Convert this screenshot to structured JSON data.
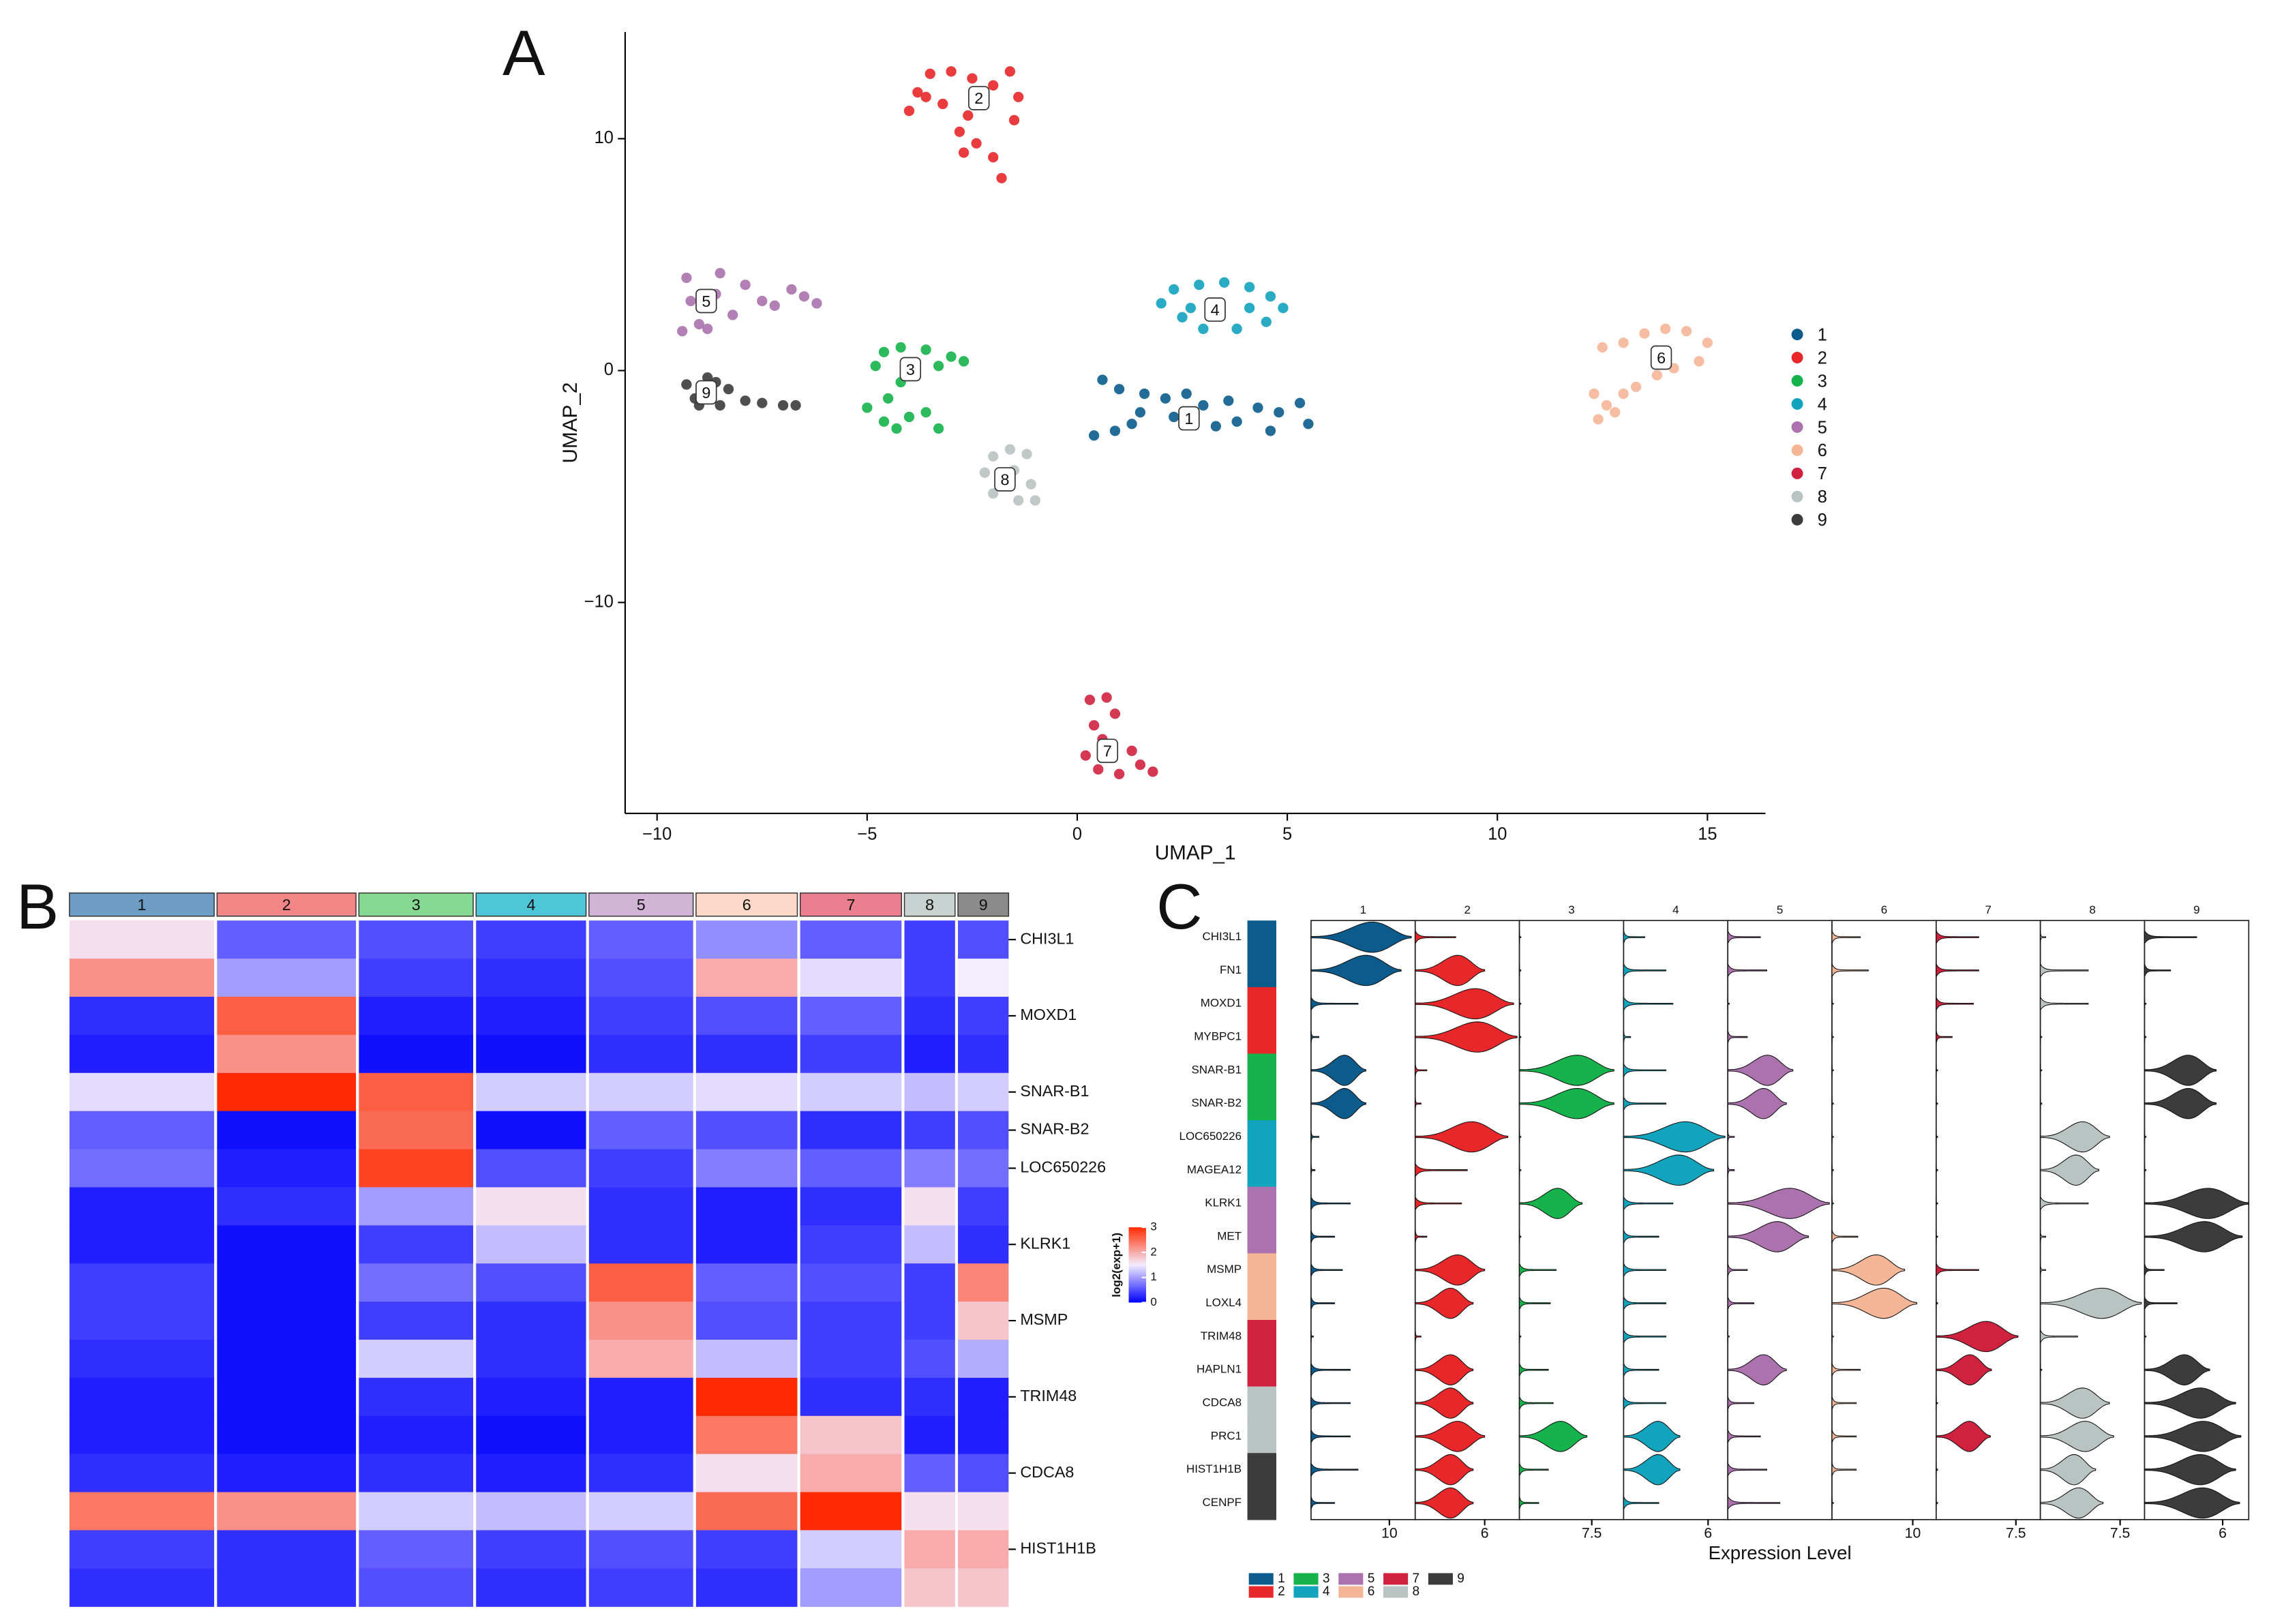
{
  "chart_data": [
    {
      "type": "scatter",
      "panel": "A",
      "xlabel": "UMAP_1",
      "ylabel": "UMAP_2",
      "xlim": [
        -10.76,
        16.38
      ],
      "ylim": [
        -19.1,
        14.6
      ],
      "xticks": [
        {
          "value": -10,
          "label": "−10"
        },
        {
          "value": -5,
          "label": "−5"
        },
        0,
        5,
        10,
        15
      ],
      "yticks": [
        {
          "value": -10,
          "label": "−10"
        },
        0,
        10
      ],
      "series": [
        {
          "name": "1",
          "color": "#0b5c8c",
          "label_x": 2.66,
          "label_y": -2.06,
          "x": [
            0.4,
            0.9,
            1.3,
            1.5,
            0.6,
            1.0,
            1.6,
            2.1,
            2.6,
            3.0,
            3.3,
            3.8,
            4.3,
            4.8,
            5.3,
            5.5,
            4.6,
            3.6,
            2.3
          ],
          "y": [
            -2.8,
            -2.6,
            -2.3,
            -1.8,
            -0.4,
            -0.8,
            -1.0,
            -1.2,
            -1.0,
            -1.5,
            -2.4,
            -2.2,
            -1.6,
            -1.8,
            -1.4,
            -2.3,
            -2.6,
            -1.3,
            -2.0
          ]
        },
        {
          "name": "2",
          "color": "#e8272a",
          "label_x": -2.34,
          "label_y": 11.75,
          "x": [
            -4.0,
            -3.8,
            -3.5,
            -3.0,
            -2.5,
            -2.0,
            -1.4,
            -1.6,
            -3.2,
            -2.6,
            -2.8,
            -2.4,
            -2.7,
            -2.0,
            -1.8,
            -1.5,
            -3.6
          ],
          "y": [
            11.2,
            12.0,
            12.8,
            12.9,
            12.6,
            12.3,
            11.8,
            12.9,
            11.5,
            11.0,
            10.3,
            9.8,
            9.4,
            9.2,
            8.3,
            10.8,
            11.8
          ]
        },
        {
          "name": "3",
          "color": "#16b24b",
          "label_x": -3.97,
          "label_y": 0.06,
          "x": [
            -4.8,
            -4.6,
            -4.2,
            -3.6,
            -3.0,
            -2.7,
            -3.3,
            -4.2,
            -4.5,
            -5.0,
            -4.6,
            -4.0,
            -3.6,
            -3.3,
            -4.3
          ],
          "y": [
            0.2,
            0.8,
            1.0,
            0.9,
            0.6,
            0.4,
            0.2,
            -0.5,
            -1.2,
            -1.6,
            -2.2,
            -2.0,
            -1.8,
            -2.5,
            -2.5
          ]
        },
        {
          "name": "4",
          "color": "#12a3bd",
          "label_x": 3.28,
          "label_y": 2.63,
          "x": [
            2.0,
            2.3,
            2.9,
            3.5,
            4.1,
            4.6,
            4.9,
            4.5,
            3.8,
            3.0,
            2.5,
            3.4,
            2.7,
            4.1
          ],
          "y": [
            2.9,
            3.5,
            3.7,
            3.8,
            3.6,
            3.2,
            2.7,
            2.1,
            1.8,
            1.8,
            2.3,
            2.8,
            2.7,
            2.7
          ]
        },
        {
          "name": "5",
          "color": "#ab72ae",
          "label_x": -8.83,
          "label_y": 3.0,
          "x": [
            -9.3,
            -9.2,
            -9.0,
            -8.5,
            -8.6,
            -8.2,
            -7.9,
            -7.5,
            -7.2,
            -6.8,
            -6.5,
            -6.2,
            -9.4,
            -8.8
          ],
          "y": [
            4.0,
            3.0,
            2.0,
            4.2,
            3.3,
            2.4,
            3.7,
            3.0,
            2.8,
            3.5,
            3.2,
            2.9,
            1.7,
            1.8
          ]
        },
        {
          "name": "6",
          "color": "#f5b698",
          "label_x": 13.9,
          "label_y": 0.56,
          "x": [
            12.5,
            13.0,
            13.5,
            14.0,
            14.5,
            15.0,
            14.8,
            14.2,
            13.8,
            13.3,
            13.0,
            12.6,
            12.4,
            12.8,
            12.3
          ],
          "y": [
            1.0,
            1.2,
            1.6,
            1.8,
            1.7,
            1.2,
            0.4,
            0.1,
            -0.2,
            -0.7,
            -1.0,
            -1.5,
            -2.1,
            -1.8,
            -1.0
          ]
        },
        {
          "name": "7",
          "color": "#d0223f",
          "label_x": 0.72,
          "label_y": -16.4,
          "x": [
            0.3,
            0.7,
            0.9,
            0.4,
            0.6,
            0.2,
            0.5,
            1.0,
            1.5,
            1.8,
            1.3,
            0.8
          ],
          "y": [
            -14.2,
            -14.1,
            -14.8,
            -15.3,
            -15.9,
            -16.6,
            -17.2,
            -17.4,
            -17.0,
            -17.3,
            -16.4,
            -16.1
          ]
        },
        {
          "name": "8",
          "color": "#b9c3c1",
          "label_x": -1.72,
          "label_y": -4.69,
          "x": [
            -2.0,
            -1.6,
            -1.2,
            -2.2,
            -1.8,
            -2.0,
            -1.4,
            -1.0,
            -1.1,
            -1.5
          ],
          "y": [
            -3.7,
            -3.4,
            -3.6,
            -4.4,
            -4.9,
            -5.3,
            -5.6,
            -5.6,
            -4.9,
            -4.3
          ]
        },
        {
          "name": "9",
          "color": "#3c3c3c",
          "label_x": -8.83,
          "label_y": -0.94,
          "x": [
            -9.3,
            -9.1,
            -8.8,
            -8.5,
            -8.3,
            -7.9,
            -7.5,
            -7.0,
            -6.7,
            -9.0,
            -8.6
          ],
          "y": [
            -0.6,
            -1.2,
            -0.3,
            -1.5,
            -0.8,
            -1.3,
            -1.4,
            -1.5,
            -1.5,
            -1.5,
            -0.5
          ]
        }
      ]
    },
    {
      "type": "heatmap",
      "panel": "B",
      "categories": [
        "1",
        "2",
        "3",
        "4",
        "5",
        "6",
        "7",
        "8",
        "9"
      ],
      "cells": [
        200,
        192,
        158,
        152,
        144,
        140,
        140,
        70,
        70
      ],
      "header_colors": [
        "#6d9dc5",
        "#f28585",
        "#86d992",
        "#4fc6d8",
        "#d2b5d6",
        "#fcd9c8",
        "#e97f8f",
        "#c8d3d1",
        "#8b8b8b"
      ],
      "rows": [
        "CHI3L1",
        null,
        "MOXD1",
        null,
        "SNAR-B1",
        "SNAR-B2",
        "LOC650226",
        null,
        "KLRK1",
        null,
        "MSMP",
        null,
        "TRIM48",
        null,
        "CDCA8",
        null,
        "HIST1H1B",
        null
      ],
      "values": [
        [
          1.6,
          0.6,
          0.5,
          0.4,
          0.6,
          0.9,
          0.6,
          0.4,
          0.5
        ],
        [
          2.2,
          1.0,
          0.4,
          0.3,
          0.5,
          2.0,
          1.4,
          0.4,
          1.5
        ],
        [
          0.3,
          2.6,
          0.2,
          0.2,
          0.4,
          0.5,
          0.6,
          0.3,
          0.4
        ],
        [
          0.2,
          2.2,
          0.1,
          0.1,
          0.3,
          0.3,
          0.4,
          0.2,
          0.3
        ],
        [
          1.4,
          3.0,
          2.6,
          1.3,
          1.3,
          1.4,
          1.3,
          1.2,
          1.3
        ],
        [
          0.6,
          0.1,
          2.5,
          0.1,
          0.6,
          0.5,
          0.3,
          0.4,
          0.5
        ],
        [
          0.7,
          0.2,
          2.8,
          0.5,
          0.4,
          0.8,
          0.6,
          0.8,
          0.7
        ],
        [
          0.2,
          0.3,
          1.0,
          1.6,
          0.3,
          0.2,
          0.3,
          1.6,
          0.4
        ],
        [
          0.2,
          0.1,
          0.4,
          1.2,
          0.3,
          0.2,
          0.4,
          1.2,
          0.3
        ],
        [
          0.4,
          0.1,
          0.7,
          0.5,
          2.6,
          0.6,
          0.5,
          0.4,
          2.3
        ],
        [
          0.4,
          0.1,
          0.4,
          0.3,
          2.2,
          0.5,
          0.4,
          0.4,
          1.8
        ],
        [
          0.3,
          0.1,
          1.3,
          0.3,
          2.0,
          1.2,
          0.4,
          0.5,
          1.1
        ],
        [
          0.2,
          0.1,
          0.3,
          0.2,
          0.2,
          3.0,
          0.3,
          0.3,
          0.2
        ],
        [
          0.2,
          0.1,
          0.2,
          0.1,
          0.2,
          2.4,
          1.8,
          0.2,
          0.2
        ],
        [
          0.3,
          0.2,
          0.3,
          0.2,
          0.3,
          1.6,
          2.0,
          0.6,
          0.5
        ],
        [
          2.4,
          2.2,
          1.3,
          1.2,
          1.3,
          2.5,
          3.0,
          1.6,
          1.6
        ],
        [
          0.4,
          0.3,
          0.6,
          0.4,
          0.5,
          0.4,
          1.3,
          2.0,
          2.0
        ],
        [
          0.3,
          0.3,
          0.5,
          0.3,
          0.4,
          0.3,
          1.0,
          1.8,
          1.8
        ]
      ],
      "colorbar": {
        "title": "log2(exp+1)",
        "lim": [
          0,
          3
        ],
        "ticks": [
          0,
          1,
          2,
          3
        ],
        "colormap": [
          "#0000ff",
          "#f4ecff",
          "#ff2a00"
        ]
      }
    },
    {
      "type": "violin",
      "panel": "C",
      "xlabel": "Expression Level",
      "genes": [
        "CHI3L1",
        "FN1",
        "MOXD1",
        "MYBPC1",
        "SNAR-B1",
        "SNAR-B2",
        "LOC650226",
        "MAGEA12",
        "KLRK1",
        "MET",
        "MSMP",
        "LOXL4",
        "TRIM48",
        "HAPLN1",
        "CDCA8",
        "PRC1",
        "HIST1H1B",
        "CENPF"
      ],
      "series": [
        {
          "name": "1",
          "color": "#0b5c8c",
          "xlim": [
            0,
            13.3
          ],
          "xticks": [
            10
          ],
          "values": [
            12.8,
            11.5,
            6,
            1,
            7,
            7,
            1,
            0.5,
            5,
            3,
            4,
            3,
            0.3,
            5,
            5,
            5,
            6,
            3
          ]
        },
        {
          "name": "2",
          "color": "#e8272a",
          "xlim": [
            0,
            9
          ],
          "xticks": [
            6
          ],
          "values": [
            3.5,
            6,
            8.5,
            8.8,
            1,
            0.5,
            8,
            4.5,
            4,
            1,
            6,
            5,
            0.5,
            5,
            5,
            6,
            5,
            5
          ]
        },
        {
          "name": "3",
          "color": "#16b24b",
          "xlim": [
            0,
            10.8
          ],
          "xticks": [
            7.5
          ],
          "values": [
            0,
            0,
            0,
            0,
            9.8,
            9.8,
            0,
            0,
            6.5,
            0,
            3.8,
            3.2,
            0,
            3,
            3.5,
            7,
            3,
            2
          ]
        },
        {
          "name": "4",
          "color": "#12a3bd",
          "xlim": [
            0,
            7.4
          ],
          "xticks": [
            6
          ],
          "values": [
            1.5,
            3,
            3.5,
            0.5,
            3,
            3,
            7.2,
            6.4,
            3.5,
            2.5,
            3,
            3,
            3,
            2.5,
            3,
            4,
            4,
            2.5
          ]
        },
        {
          "name": "5",
          "color": "#ab72ae",
          "xlim": [
            0,
            8
          ],
          "xticks": [],
          "values": [
            2.5,
            3,
            0,
            1.5,
            5,
            4.5,
            0.5,
            0.5,
            7.8,
            6.2,
            1.5,
            2,
            0,
            4.5,
            2,
            2.5,
            3,
            4
          ]
        },
        {
          "name": "6",
          "color": "#f5b698",
          "xlim": [
            0,
            12.9
          ],
          "xticks": [
            10
          ],
          "values": [
            3.5,
            4.5,
            0,
            0,
            0,
            0,
            0,
            0,
            0,
            3.2,
            9,
            10.5,
            0,
            3.5,
            3,
            3,
            3,
            0
          ]
        },
        {
          "name": "7",
          "color": "#d0223f",
          "xlim": [
            0,
            9.8
          ],
          "xticks": [
            7.5
          ],
          "values": [
            4,
            4,
            3.5,
            1.5,
            0,
            0,
            0,
            0,
            0,
            0,
            4,
            0,
            7.7,
            5.2,
            0,
            5.1,
            0,
            0
          ]
        },
        {
          "name": "8",
          "color": "#b9c3c1",
          "xlim": [
            0,
            9.8
          ],
          "xticks": [
            7.5
          ],
          "values": [
            0.5,
            4.5,
            4.5,
            0,
            0,
            0,
            6.5,
            5.5,
            4.5,
            0.5,
            0.5,
            9.5,
            3.5,
            0,
            6.5,
            6.9,
            5.2,
            5.9
          ]
        },
        {
          "name": "9",
          "color": "#3c3c3c",
          "xlim": [
            0,
            8
          ],
          "xticks": [
            6
          ],
          "values": [
            4,
            2,
            0,
            0,
            5.5,
            5.5,
            0,
            0,
            8,
            7.5,
            1.5,
            2.5,
            0,
            5,
            7,
            7.4,
            7,
            7.3
          ]
        }
      ]
    }
  ]
}
